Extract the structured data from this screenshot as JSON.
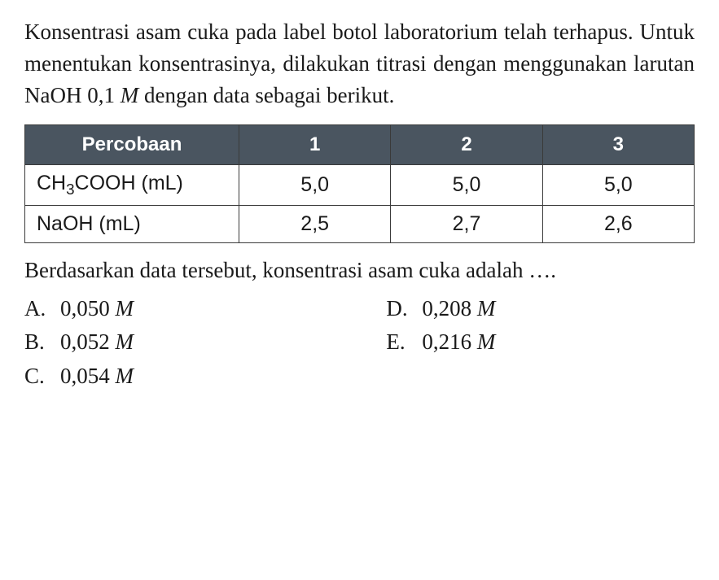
{
  "question": {
    "line1": "Konsentrasi asam cuka pada label botol laboratorium",
    "line2": "telah terhapus. Untuk menentukan konsentrasinya,",
    "line3": "dilakukan titrasi dengan menggunakan larutan",
    "line4_a": "NaOH  0,1 ",
    "line4_m": "M",
    "line4_b": " dengan data sebagai berikut."
  },
  "table": {
    "header": {
      "col1": "Percobaan",
      "col2": "1",
      "col3": "2",
      "col4": "3"
    },
    "row1": {
      "label_pre": "CH",
      "label_sub": "3",
      "label_post": "COOH (mL)",
      "c1": "5,0",
      "c2": "5,0",
      "c3": "5,0"
    },
    "row2": {
      "label": "NaOH (mL)",
      "c1": "2,5",
      "c2": "2,7",
      "c3": "2,6"
    },
    "header_bg": "#4a5560",
    "header_fg": "#ffffff",
    "cell_bg": "#ffffff",
    "border_color": "#3a3a3a"
  },
  "after": {
    "line1": "Berdasarkan data tersebut, konsentrasi asam cuka",
    "line2": "adalah …."
  },
  "options": {
    "a": {
      "letter": "A.",
      "val": "0,050 ",
      "unit": "M"
    },
    "b": {
      "letter": "B.",
      "val": "0,052 ",
      "unit": "M"
    },
    "c": {
      "letter": "C.",
      "val": "0,054 ",
      "unit": "M"
    },
    "d": {
      "letter": "D.",
      "val": "0,208 ",
      "unit": "M"
    },
    "e": {
      "letter": "E.",
      "val": "0,216 ",
      "unit": "M"
    }
  }
}
